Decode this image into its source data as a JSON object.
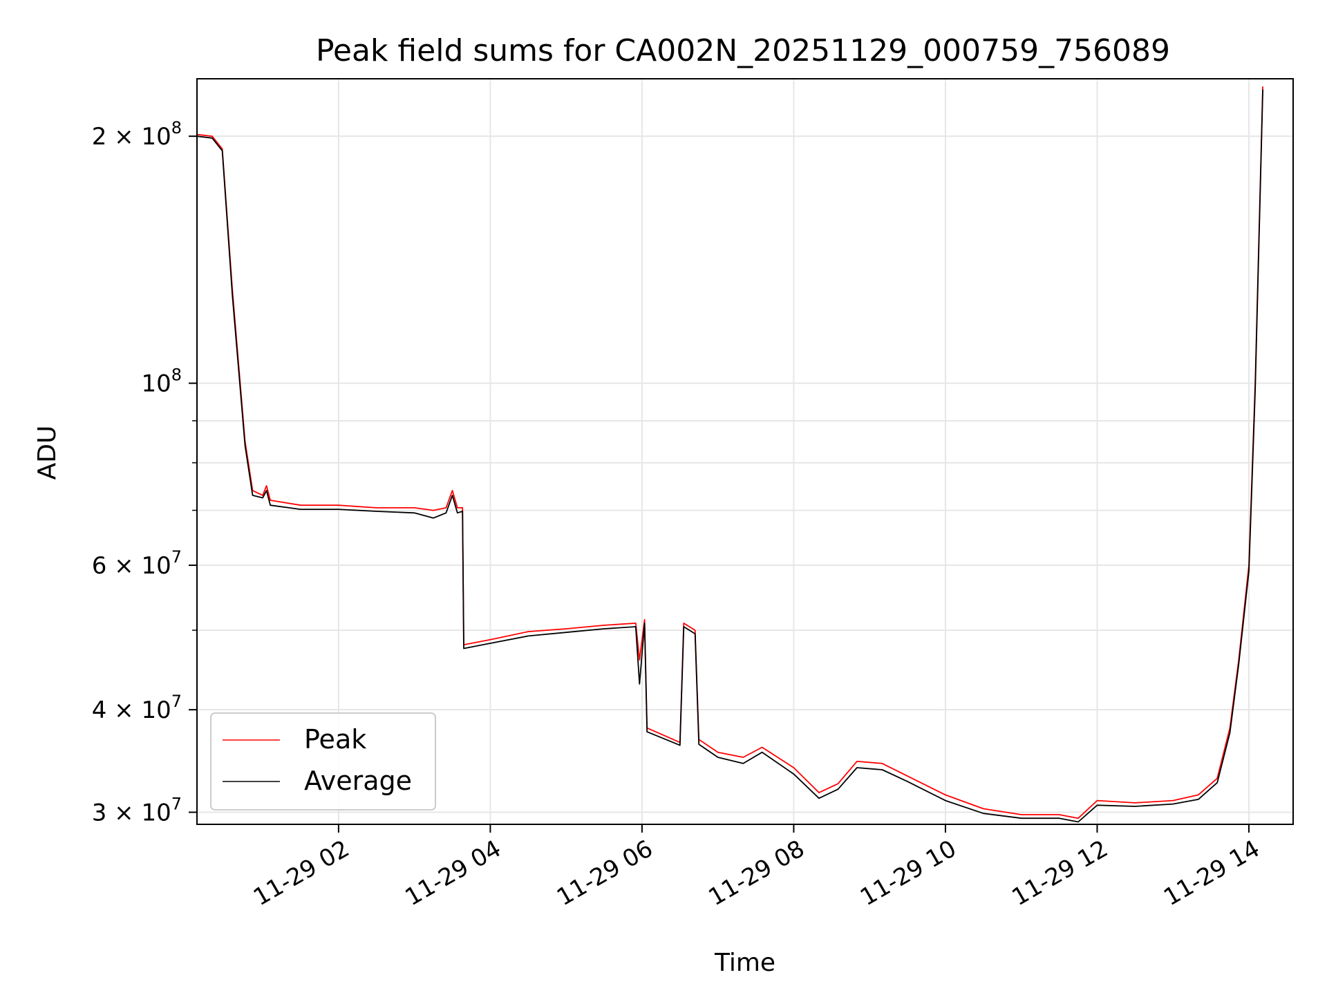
{
  "chart_data": {
    "type": "line",
    "title": "Peak field sums for CA002N_20251129_000759_756089",
    "xlabel": "Time",
    "ylabel": "ADU",
    "x_scale": "time",
    "y_scale": "log",
    "xlim": [
      "2025-11-29 00:08",
      "2025-11-29 14:35"
    ],
    "ylim": [
      29000000,
      235000000
    ],
    "x_ticks": [
      "11-29 02",
      "11-29 04",
      "11-29 06",
      "11-29 08",
      "11-29 10",
      "11-29 12",
      "11-29 14"
    ],
    "y_ticks": [
      {
        "value": 200000000,
        "base": "2 × 10",
        "exp": "8"
      },
      {
        "value": 100000000,
        "base": "10",
        "exp": "8"
      },
      {
        "value": 60000000,
        "base": "6 × 10",
        "exp": "7"
      },
      {
        "value": 40000000,
        "base": "4 × 10",
        "exp": "7"
      },
      {
        "value": 30000000,
        "base": "3 × 10",
        "exp": "7"
      }
    ],
    "grid": true,
    "legend_position": "lower-left",
    "series": [
      {
        "name": "Peak",
        "color": "#ff0000",
        "points": [
          [
            "00:08",
            201000000
          ],
          [
            "00:20",
            200000000
          ],
          [
            "00:28",
            193000000
          ],
          [
            "00:36",
            130000000
          ],
          [
            "00:46",
            85000000
          ],
          [
            "00:52",
            74000000
          ],
          [
            "01:00",
            73000000
          ],
          [
            "01:03",
            75000000
          ],
          [
            "01:06",
            72000000
          ],
          [
            "01:30",
            71000000
          ],
          [
            "02:00",
            71000000
          ],
          [
            "02:30",
            70500000
          ],
          [
            "03:00",
            70500000
          ],
          [
            "03:15",
            70000000
          ],
          [
            "03:25",
            70500000
          ],
          [
            "03:30",
            74000000
          ],
          [
            "03:34",
            70500000
          ],
          [
            "03:38",
            70500000
          ],
          [
            "03:39",
            48000000
          ],
          [
            "04:00",
            48700000
          ],
          [
            "04:30",
            49800000
          ],
          [
            "05:00",
            50200000
          ],
          [
            "05:30",
            50700000
          ],
          [
            "05:55",
            51000000
          ],
          [
            "05:58",
            46000000
          ],
          [
            "06:02",
            51500000
          ],
          [
            "06:04",
            38000000
          ],
          [
            "06:30",
            36500000
          ],
          [
            "06:33",
            51000000
          ],
          [
            "06:42",
            50000000
          ],
          [
            "06:45",
            36800000
          ],
          [
            "07:00",
            35500000
          ],
          [
            "07:20",
            35000000
          ],
          [
            "07:35",
            36000000
          ],
          [
            "08:00",
            34000000
          ],
          [
            "08:20",
            31700000
          ],
          [
            "08:35",
            32500000
          ],
          [
            "08:50",
            34600000
          ],
          [
            "09:10",
            34400000
          ],
          [
            "09:30",
            33200000
          ],
          [
            "10:00",
            31500000
          ],
          [
            "10:30",
            30300000
          ],
          [
            "11:00",
            29800000
          ],
          [
            "11:30",
            29800000
          ],
          [
            "11:45",
            29500000
          ],
          [
            "12:00",
            31000000
          ],
          [
            "12:30",
            30800000
          ],
          [
            "13:00",
            31000000
          ],
          [
            "13:20",
            31500000
          ],
          [
            "13:35",
            33000000
          ],
          [
            "13:45",
            38000000
          ],
          [
            "13:52",
            46000000
          ],
          [
            "14:00",
            60000000
          ],
          [
            "14:05",
            100000000
          ],
          [
            "14:11",
            230000000
          ]
        ]
      },
      {
        "name": "Average",
        "color": "#000000",
        "points": [
          [
            "00:08",
            200000000
          ],
          [
            "00:20",
            199000000
          ],
          [
            "00:28",
            192000000
          ],
          [
            "00:36",
            128000000
          ],
          [
            "00:46",
            84000000
          ],
          [
            "00:52",
            73000000
          ],
          [
            "01:00",
            72500000
          ],
          [
            "01:03",
            74000000
          ],
          [
            "01:06",
            71000000
          ],
          [
            "01:30",
            70200000
          ],
          [
            "02:00",
            70200000
          ],
          [
            "02:30",
            69800000
          ],
          [
            "03:00",
            69500000
          ],
          [
            "03:15",
            68500000
          ],
          [
            "03:25",
            69500000
          ],
          [
            "03:30",
            73000000
          ],
          [
            "03:34",
            69500000
          ],
          [
            "03:38",
            69800000
          ],
          [
            "03:39",
            47500000
          ],
          [
            "04:00",
            48200000
          ],
          [
            "04:30",
            49200000
          ],
          [
            "05:00",
            49700000
          ],
          [
            "05:30",
            50200000
          ],
          [
            "05:55",
            50500000
          ],
          [
            "05:58",
            43000000
          ],
          [
            "06:02",
            51000000
          ],
          [
            "06:04",
            37600000
          ],
          [
            "06:30",
            36200000
          ],
          [
            "06:33",
            50500000
          ],
          [
            "06:42",
            49500000
          ],
          [
            "06:45",
            36300000
          ],
          [
            "07:00",
            35000000
          ],
          [
            "07:20",
            34400000
          ],
          [
            "07:35",
            35500000
          ],
          [
            "08:00",
            33400000
          ],
          [
            "08:20",
            31200000
          ],
          [
            "08:35",
            32000000
          ],
          [
            "08:50",
            34000000
          ],
          [
            "09:10",
            33800000
          ],
          [
            "09:30",
            32700000
          ],
          [
            "10:00",
            31000000
          ],
          [
            "10:30",
            29900000
          ],
          [
            "11:00",
            29500000
          ],
          [
            "11:30",
            29500000
          ],
          [
            "11:45",
            29200000
          ],
          [
            "12:00",
            30600000
          ],
          [
            "12:30",
            30500000
          ],
          [
            "13:00",
            30700000
          ],
          [
            "13:20",
            31100000
          ],
          [
            "13:35",
            32600000
          ],
          [
            "13:45",
            37500000
          ],
          [
            "13:52",
            45500000
          ],
          [
            "14:00",
            59000000
          ],
          [
            "14:05",
            98000000
          ],
          [
            "14:11",
            228000000
          ]
        ]
      }
    ]
  }
}
